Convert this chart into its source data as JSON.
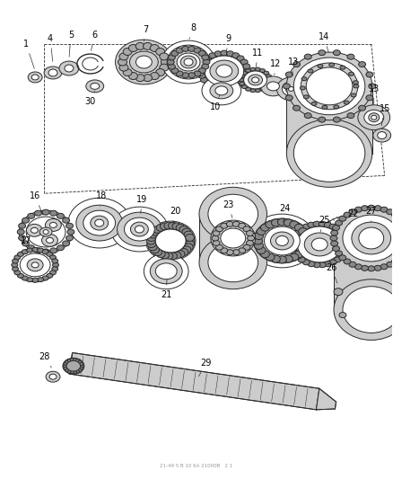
{
  "bg_color": "#ffffff",
  "fig_width": 4.38,
  "fig_height": 5.33,
  "dpi": 100,
  "footer_text": "21-49 5 B 10 6A 21000B   2 1",
  "lc": "#2a2a2a",
  "lw": 0.7
}
